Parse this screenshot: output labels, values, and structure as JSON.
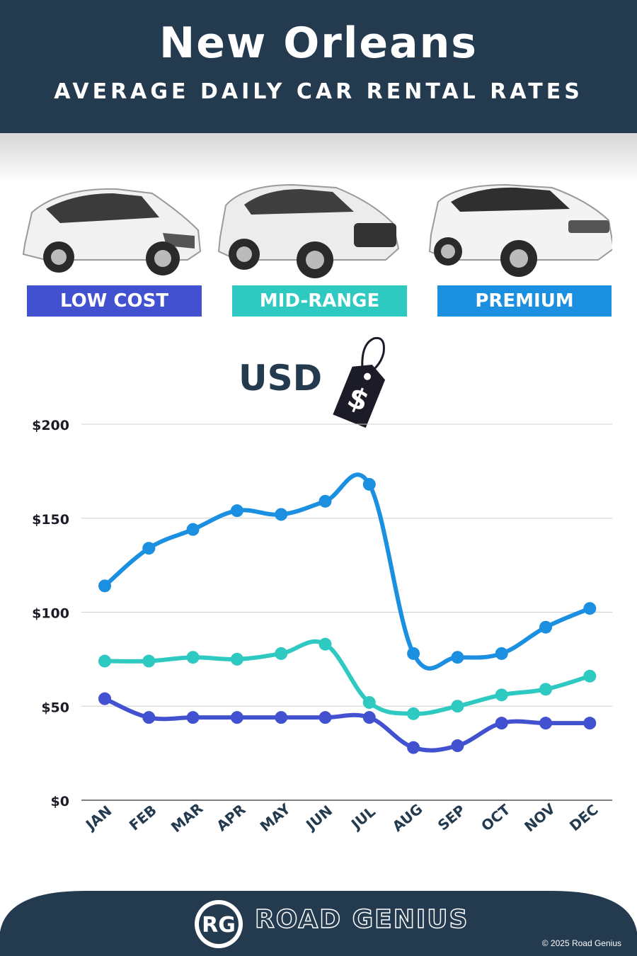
{
  "header": {
    "city": "New Orleans",
    "subtitle": "AVERAGE DAILY CAR RENTAL RATES"
  },
  "categories": [
    {
      "label": "LOW COST",
      "color": "#4251d0"
    },
    {
      "label": "MID-RANGE",
      "color": "#2ec9c0"
    },
    {
      "label": "PREMIUM",
      "color": "#1b8fe0"
    }
  ],
  "currency": {
    "label": "USD",
    "symbol": "$"
  },
  "chart_data": {
    "type": "line",
    "categories": [
      "JAN",
      "FEB",
      "MAR",
      "APR",
      "MAY",
      "JUN",
      "JUL",
      "AUG",
      "SEP",
      "OCT",
      "NOV",
      "DEC"
    ],
    "series": [
      {
        "name": "LOW COST",
        "color": "#4251d0",
        "values": [
          54,
          44,
          44,
          44,
          44,
          44,
          44,
          28,
          29,
          41,
          41,
          41
        ]
      },
      {
        "name": "MID-RANGE",
        "color": "#2ec9c0",
        "values": [
          74,
          74,
          76,
          75,
          78,
          83,
          52,
          46,
          50,
          56,
          59,
          66
        ]
      },
      {
        "name": "PREMIUM",
        "color": "#1b8fe0",
        "values": [
          114,
          134,
          144,
          154,
          152,
          159,
          168,
          78,
          76,
          78,
          92,
          102
        ]
      }
    ],
    "y_ticks": [
      "$0",
      "$50",
      "$100",
      "$150",
      "$200"
    ],
    "ylim": [
      0,
      200
    ],
    "grid": true
  },
  "footer": {
    "brand": "ROAD GENIUS",
    "logo_text": "RG",
    "copyright": "© 2025 Road Genius",
    "background": "#233a4f"
  }
}
